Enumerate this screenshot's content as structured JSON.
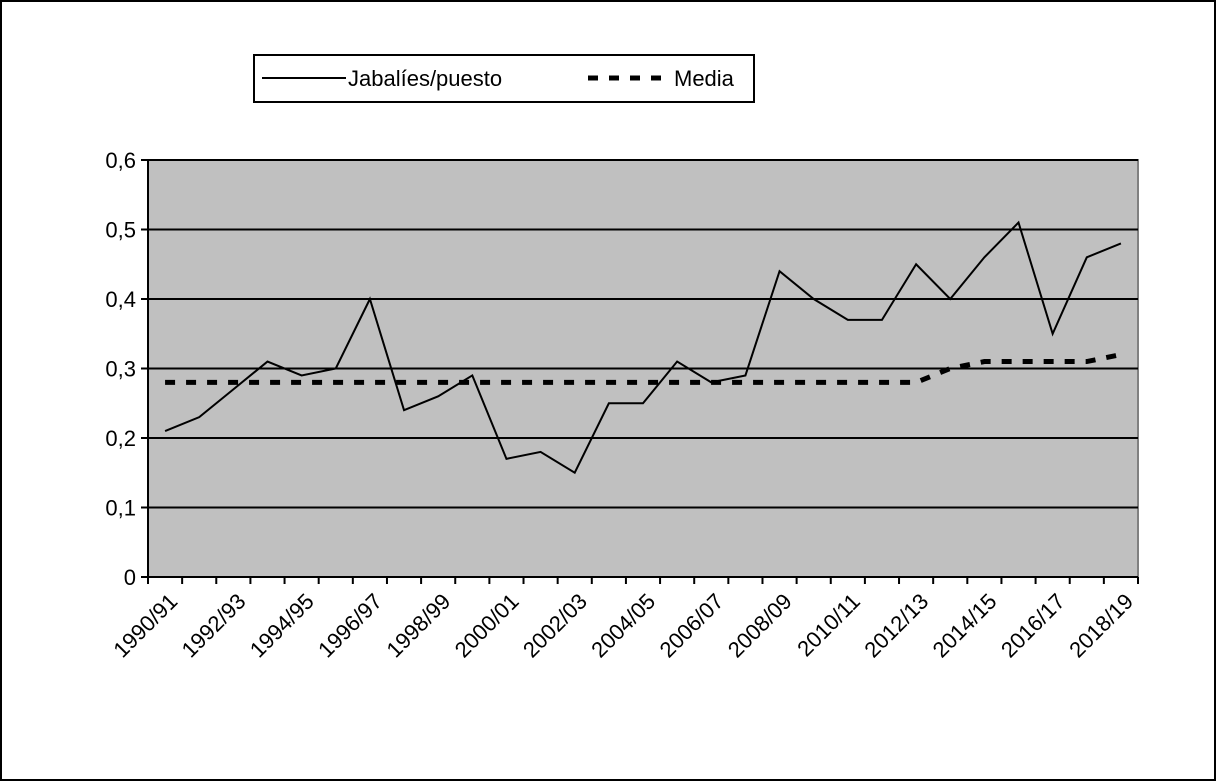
{
  "chart_data": {
    "type": "line",
    "categories": [
      "1990/91",
      null,
      "1992/93",
      null,
      "1994/95",
      null,
      "1996/97",
      null,
      "1998/99",
      null,
      "2000/01",
      null,
      "2002/03",
      null,
      "2004/05",
      null,
      "2006/07",
      null,
      "2008/09",
      null,
      "2010/11",
      null,
      "2012/13",
      null,
      "2014/15",
      null,
      "2016/17",
      null,
      "2018/19"
    ],
    "series": [
      {
        "name": "Jabalíes/puesto",
        "color": "#000000",
        "style": "solid",
        "values": [
          0.21,
          0.23,
          0.27,
          0.31,
          0.29,
          0.3,
          0.4,
          0.24,
          0.26,
          0.29,
          0.17,
          0.18,
          0.15,
          0.25,
          0.25,
          0.31,
          0.28,
          0.29,
          0.44,
          0.4,
          0.37,
          0.37,
          0.45,
          0.4,
          0.46,
          0.51,
          0.35,
          0.46,
          0.48
        ]
      },
      {
        "name": "Media",
        "color": "#000000",
        "style": "dashed",
        "values": [
          0.28,
          0.28,
          0.28,
          0.28,
          0.28,
          0.28,
          0.28,
          0.28,
          0.28,
          0.28,
          0.28,
          0.28,
          0.28,
          0.28,
          0.28,
          0.28,
          0.28,
          0.28,
          0.28,
          0.28,
          0.28,
          0.28,
          0.28,
          0.3,
          0.31,
          0.31,
          0.31,
          0.31,
          0.32
        ]
      }
    ],
    "ylim": [
      0,
      0.6
    ],
    "yticks": [
      0,
      {
        "value": 0.1,
        "label": "0,1"
      },
      {
        "value": 0.2,
        "label": "0,2"
      },
      {
        "value": 0.3,
        "label": "0,3"
      },
      {
        "value": 0.4,
        "label": "0,4"
      },
      {
        "value": 0.5,
        "label": "0,5"
      },
      {
        "value": 0.6,
        "label": "0,6"
      }
    ],
    "grid": true,
    "legend": "top",
    "plot_background": "#c0c0c0"
  }
}
